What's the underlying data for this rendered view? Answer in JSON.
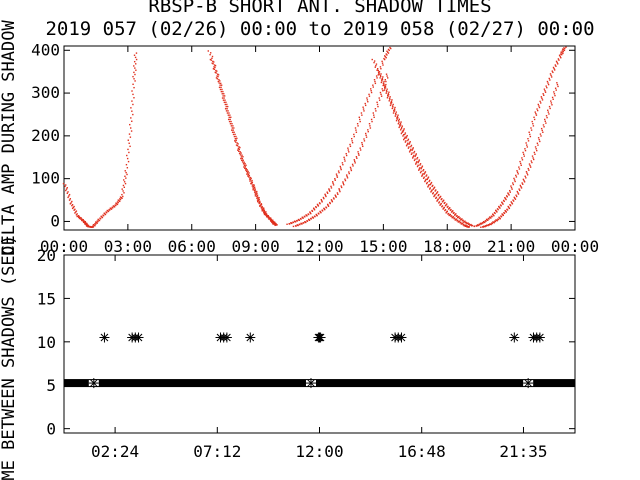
{
  "title_line1": "RBSP-B SHORT ANT. SHADOW TIMES",
  "title_line2": "2019 057 (02/26) 00:00 to 2019 058 (02/27) 00:00",
  "chart_data": [
    {
      "type": "scatter",
      "ylabel": "DELTA AMP DURING SHADOW",
      "color": "#e0301e",
      "ylim": [
        -20,
        410
      ],
      "xlim": [
        0,
        24
      ],
      "xtick_labels": [
        "00:00",
        "03:00",
        "06:00",
        "09:00",
        "12:00",
        "15:00",
        "18:00",
        "21:00",
        "00:00"
      ],
      "ytick_labels": [
        "0",
        "100",
        "200",
        "300",
        "400"
      ],
      "ytick_values": [
        0,
        100,
        200,
        300,
        400
      ],
      "series": [
        {
          "x": [
            0.0,
            0.3,
            0.6,
            0.9,
            1.1,
            1.3,
            1.6,
            2.0,
            2.4,
            2.7,
            2.9,
            3.1,
            3.25,
            3.35
          ],
          "y": [
            90,
            45,
            15,
            2,
            -10,
            -12,
            5,
            25,
            40,
            60,
            120,
            220,
            330,
            400
          ]
        },
        {
          "x": [
            6.8,
            7.2,
            7.6,
            8.0,
            8.4,
            8.8,
            9.1,
            9.4,
            9.7,
            9.85
          ],
          "y": [
            400,
            340,
            270,
            200,
            140,
            90,
            50,
            20,
            5,
            -5
          ]
        },
        {
          "x": [
            6.9,
            7.3,
            7.7,
            8.1,
            8.5,
            8.9,
            9.2,
            9.5,
            9.8,
            9.95
          ],
          "y": [
            380,
            320,
            250,
            180,
            125,
            80,
            40,
            15,
            0,
            -8
          ]
        },
        {
          "x": [
            10.5,
            11.0,
            11.5,
            12.0,
            12.5,
            13.0,
            13.5,
            14.0,
            14.5,
            15.0,
            15.3
          ],
          "y": [
            -5,
            5,
            20,
            45,
            80,
            130,
            190,
            260,
            320,
            380,
            410
          ]
        },
        {
          "x": [
            10.8,
            11.3,
            11.8,
            12.3,
            12.8,
            13.3,
            13.8,
            14.3,
            14.8,
            15.2
          ],
          "y": [
            -10,
            0,
            15,
            35,
            65,
            110,
            160,
            220,
            290,
            350
          ]
        },
        {
          "x": [
            14.5,
            14.9,
            15.3,
            15.7,
            16.0,
            16.4,
            16.8,
            17.2,
            17.6,
            18.0,
            18.4,
            18.8,
            19.0
          ],
          "y": [
            380,
            330,
            280,
            230,
            190,
            150,
            110,
            75,
            45,
            20,
            5,
            -8,
            -12
          ]
        },
        {
          "x": [
            14.8,
            15.2,
            15.6,
            16.0,
            16.4,
            16.8,
            17.2,
            17.6,
            18.0,
            18.4,
            18.8,
            19.2
          ],
          "y": [
            350,
            300,
            250,
            205,
            165,
            125,
            90,
            60,
            35,
            15,
            0,
            -10
          ]
        },
        {
          "x": [
            19.3,
            19.7,
            20.1,
            20.5,
            20.9,
            21.3,
            21.7,
            22.1,
            22.5,
            22.9,
            23.3,
            23.5
          ],
          "y": [
            -10,
            0,
            15,
            40,
            70,
            120,
            180,
            250,
            300,
            350,
            390,
            410
          ]
        },
        {
          "x": [
            19.6,
            20.0,
            20.4,
            20.8,
            21.2,
            21.6,
            22.0,
            22.4,
            22.8,
            23.2
          ],
          "y": [
            -12,
            -5,
            8,
            30,
            60,
            100,
            150,
            210,
            270,
            330
          ]
        }
      ]
    },
    {
      "type": "scatter",
      "ylabel": "TIME BETWEEN SHADOWS (SEC)",
      "marker": "asterisk",
      "ylim": [
        -0.5,
        20
      ],
      "xlim": [
        0,
        24
      ],
      "xtick_labels": [
        "02:24",
        "07:12",
        "12:00",
        "16:48",
        "21:35"
      ],
      "xtick_values": [
        2.4,
        7.2,
        12.0,
        16.8,
        21.58
      ],
      "ytick_labels": [
        "0",
        "5",
        "10",
        "15",
        "20"
      ],
      "ytick_values": [
        0,
        5,
        10,
        15,
        20
      ],
      "baseline_value": 5.25,
      "baseline_x_range": [
        0,
        24
      ],
      "points_y10": [
        1.9,
        3.2,
        3.35,
        3.5,
        7.35,
        7.5,
        7.65,
        8.75,
        11.95,
        12.0,
        12.05,
        15.55,
        15.7,
        15.85,
        21.15,
        22.05,
        22.2,
        22.35
      ],
      "points_y5": [
        1.4,
        11.6,
        21.8
      ]
    }
  ]
}
